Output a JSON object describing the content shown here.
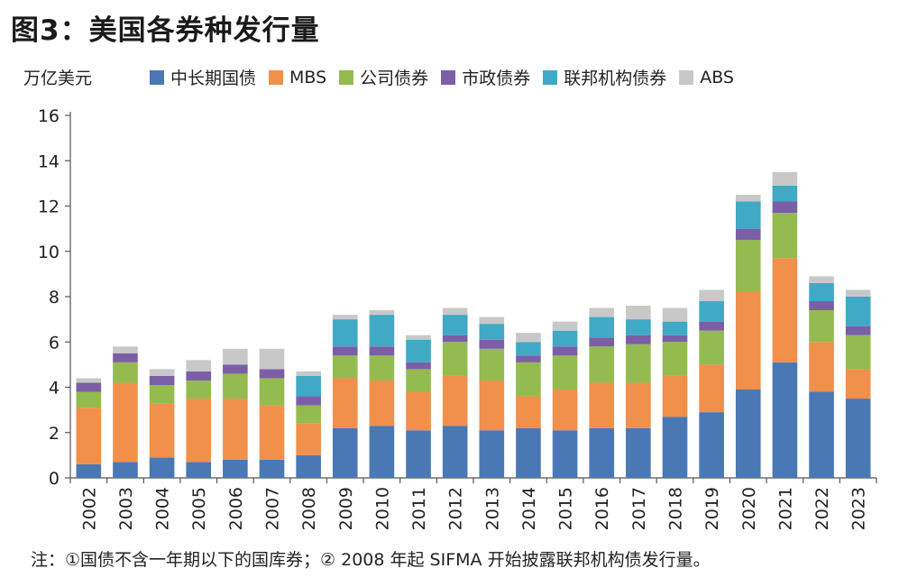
{
  "title": "图3：美国各券种发行量",
  "unit": "万亿美元",
  "note": "注：①国债不含一年期以下的国库券；② 2008 年起 SIFMA 开始披露联邦机构债发行量。",
  "chart_data": {
    "type": "bar",
    "stacked": true,
    "ylabel": "万亿美元",
    "ylim": [
      0,
      16
    ],
    "yticks": [
      0,
      2,
      4,
      6,
      8,
      10,
      12,
      14,
      16
    ],
    "categories": [
      "2002",
      "2003",
      "2004",
      "2005",
      "2006",
      "2007",
      "2008",
      "2009",
      "2010",
      "2011",
      "2012",
      "2013",
      "2014",
      "2015",
      "2016",
      "2017",
      "2018",
      "2019",
      "2020",
      "2021",
      "2022",
      "2023"
    ],
    "series": [
      {
        "name": "中长期国债",
        "color": "#4a78b5",
        "values": [
          0.6,
          0.7,
          0.9,
          0.7,
          0.8,
          0.8,
          1.0,
          2.2,
          2.3,
          2.1,
          2.3,
          2.1,
          2.2,
          2.1,
          2.2,
          2.2,
          2.7,
          2.9,
          3.9,
          5.1,
          3.8,
          3.5
        ]
      },
      {
        "name": "MBS",
        "color": "#f0904a",
        "values": [
          2.5,
          3.5,
          2.4,
          2.8,
          2.7,
          2.4,
          1.4,
          2.2,
          2.0,
          1.7,
          2.2,
          2.2,
          1.4,
          1.8,
          2.0,
          2.0,
          1.8,
          2.1,
          4.3,
          4.6,
          2.2,
          1.3
        ]
      },
      {
        "name": "公司债券",
        "color": "#94bb4f",
        "values": [
          0.7,
          0.9,
          0.8,
          0.8,
          1.1,
          1.2,
          0.8,
          1.0,
          1.1,
          1.0,
          1.5,
          1.4,
          1.5,
          1.5,
          1.6,
          1.7,
          1.5,
          1.5,
          2.3,
          2.0,
          1.4,
          1.5
        ]
      },
      {
        "name": "市政债券",
        "color": "#7b5fa6",
        "values": [
          0.4,
          0.4,
          0.4,
          0.4,
          0.4,
          0.4,
          0.4,
          0.4,
          0.4,
          0.3,
          0.3,
          0.4,
          0.3,
          0.4,
          0.4,
          0.4,
          0.3,
          0.4,
          0.5,
          0.5,
          0.4,
          0.4
        ]
      },
      {
        "name": "联邦机构债券",
        "color": "#3fa9c6",
        "values": [
          0,
          0,
          0,
          0,
          0,
          0,
          0.9,
          1.2,
          1.4,
          1.0,
          0.9,
          0.7,
          0.6,
          0.7,
          0.9,
          0.7,
          0.6,
          0.9,
          1.2,
          0.7,
          0.8,
          1.3
        ]
      },
      {
        "name": "ABS",
        "color": "#c8c8c8",
        "values": [
          0.2,
          0.3,
          0.3,
          0.5,
          0.7,
          0.9,
          0.2,
          0.2,
          0.2,
          0.2,
          0.3,
          0.3,
          0.4,
          0.4,
          0.4,
          0.6,
          0.6,
          0.5,
          0.3,
          0.6,
          0.3,
          0.3
        ]
      }
    ],
    "grid": false,
    "legend": "top"
  }
}
